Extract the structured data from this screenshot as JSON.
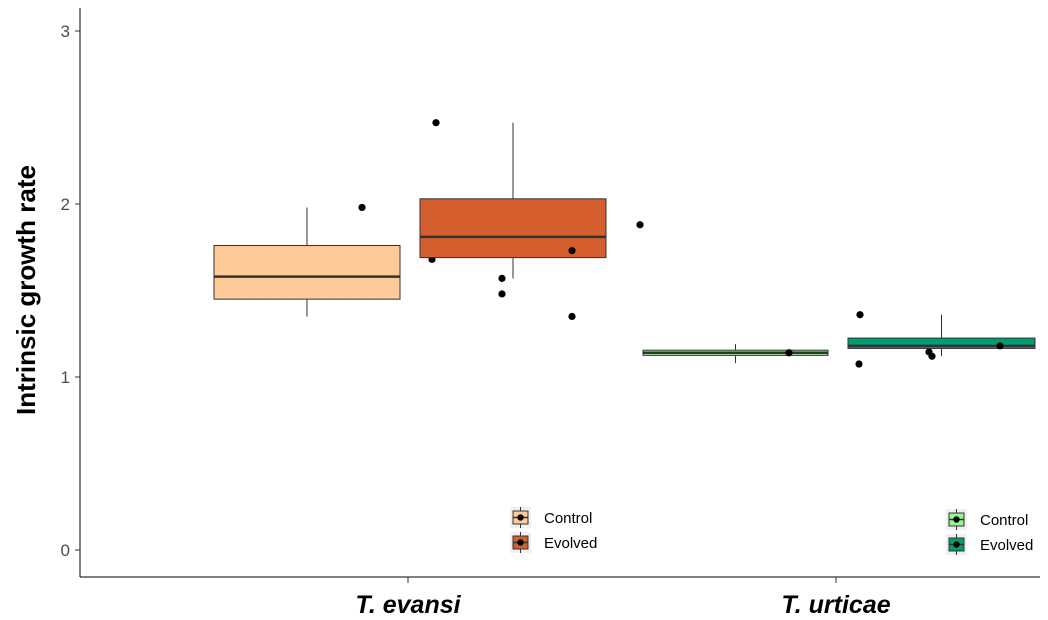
{
  "chart_data": {
    "type": "box",
    "ylabel": "Intrinsic growth rate",
    "ylim": [
      0,
      3
    ],
    "yticks": [
      0,
      1,
      2,
      3
    ],
    "grid": false,
    "panels": [
      {
        "label": "T. evansi",
        "legend": {
          "position": "bottom-right",
          "entries": [
            {
              "label": "Control",
              "color": "#FDCB98"
            },
            {
              "label": "Evolved",
              "color": "#D55E2F"
            }
          ]
        },
        "groups": [
          {
            "name": "Control",
            "color": "#FDCB98",
            "box": {
              "whisker_low": 1.35,
              "q1": 1.45,
              "median": 1.58,
              "q3": 1.76,
              "whisker_high": 1.98
            },
            "points": [
              1.98,
              1.68,
              1.48,
              1.35
            ]
          },
          {
            "name": "Evolved",
            "color": "#D55E2F",
            "box": {
              "whisker_low": 1.57,
              "q1": 1.69,
              "median": 1.81,
              "q3": 2.03,
              "whisker_high": 2.47
            },
            "points": [
              2.47,
              1.57,
              1.73,
              1.88
            ]
          }
        ]
      },
      {
        "label": "T. urticae",
        "legend": {
          "position": "bottom-right",
          "entries": [
            {
              "label": "Control",
              "color": "#98F391"
            },
            {
              "label": "Evolved",
              "color": "#009E73"
            }
          ]
        },
        "groups": [
          {
            "name": "Control",
            "color": "#98F391",
            "box": {
              "whisker_low": 1.08,
              "q1": 1.125,
              "median": 1.14,
              "q3": 1.155,
              "whisker_high": 1.19
            },
            "points": [
              1.14,
              1.075,
              1.145,
              1.195
            ]
          },
          {
            "name": "Evolved",
            "color": "#009E73",
            "box": {
              "whisker_low": 1.12,
              "q1": 1.165,
              "median": 1.18,
              "q3": 1.225,
              "whisker_high": 1.36
            },
            "points": [
              1.36,
              1.12,
              1.18,
              1.185
            ]
          }
        ]
      }
    ]
  }
}
